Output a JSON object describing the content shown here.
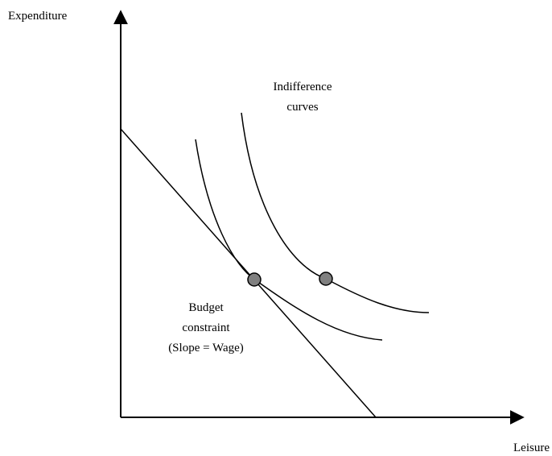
{
  "axes": {
    "y_label": "Expenditure",
    "x_label": "Leisure"
  },
  "annotations": {
    "curves_label": [
      "Indifference",
      "curves"
    ],
    "budget_label": [
      "Budget",
      "constraint",
      "(Slope = Wage)"
    ]
  }
}
